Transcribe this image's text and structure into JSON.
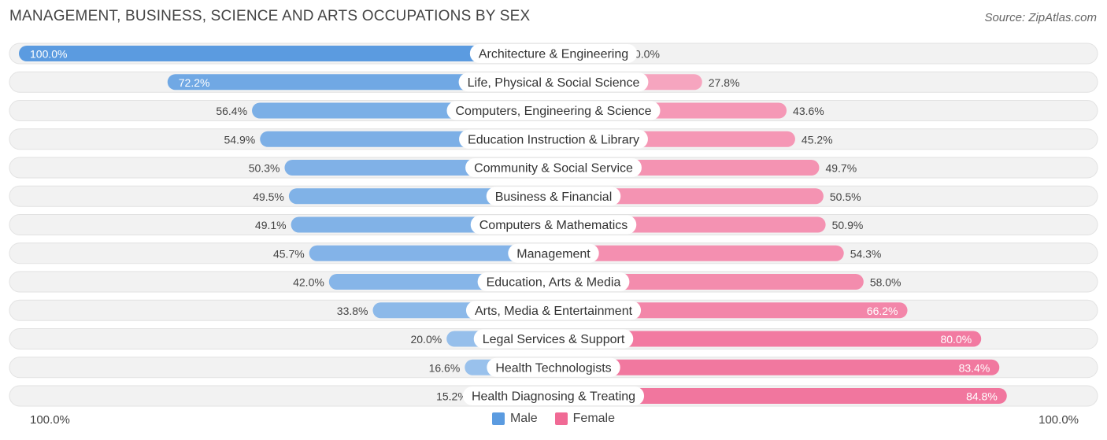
{
  "title": "MANAGEMENT, BUSINESS, SCIENCE AND ARTS OCCUPATIONS BY SEX",
  "source": "Source: ZipAtlas.com",
  "axis": {
    "left_label": "100.0%",
    "right_label": "100.0%"
  },
  "legend": {
    "male": "Male",
    "female": "Female"
  },
  "colors": {
    "male": "#5b9be0",
    "female": "#f06a95",
    "track": "#f1f1f1"
  },
  "chart_data": {
    "type": "bar",
    "orientation": "horizontal-diverging",
    "title": "MANAGEMENT, BUSINESS, SCIENCE AND ARTS OCCUPATIONS BY SEX",
    "categories": [
      "Architecture & Engineering",
      "Life, Physical & Social Science",
      "Computers, Engineering & Science",
      "Education Instruction & Library",
      "Community & Social Service",
      "Business & Financial",
      "Computers & Mathematics",
      "Management",
      "Education, Arts & Media",
      "Arts, Media & Entertainment",
      "Legal Services & Support",
      "Health Technologists",
      "Health Diagnosing & Treating"
    ],
    "series": [
      {
        "name": "Male",
        "values": [
          100.0,
          72.2,
          56.4,
          54.9,
          50.3,
          49.5,
          49.1,
          45.7,
          42.0,
          33.8,
          20.0,
          16.6,
          15.2
        ],
        "labels": [
          "100.0%",
          "72.2%",
          "56.4%",
          "54.9%",
          "50.3%",
          "49.5%",
          "49.1%",
          "45.7%",
          "42.0%",
          "33.8%",
          "20.0%",
          "16.6%",
          "15.2%"
        ]
      },
      {
        "name": "Female",
        "values": [
          0.0,
          27.8,
          43.6,
          45.2,
          49.7,
          50.5,
          50.9,
          54.3,
          58.0,
          66.2,
          80.0,
          83.4,
          84.8
        ],
        "labels": [
          "0.0%",
          "27.8%",
          "43.6%",
          "45.2%",
          "49.7%",
          "50.5%",
          "50.9%",
          "54.3%",
          "58.0%",
          "66.2%",
          "80.0%",
          "83.4%",
          "84.8%"
        ]
      }
    ],
    "xlim": [
      -100,
      100
    ],
    "legend_position": "bottom-center"
  }
}
